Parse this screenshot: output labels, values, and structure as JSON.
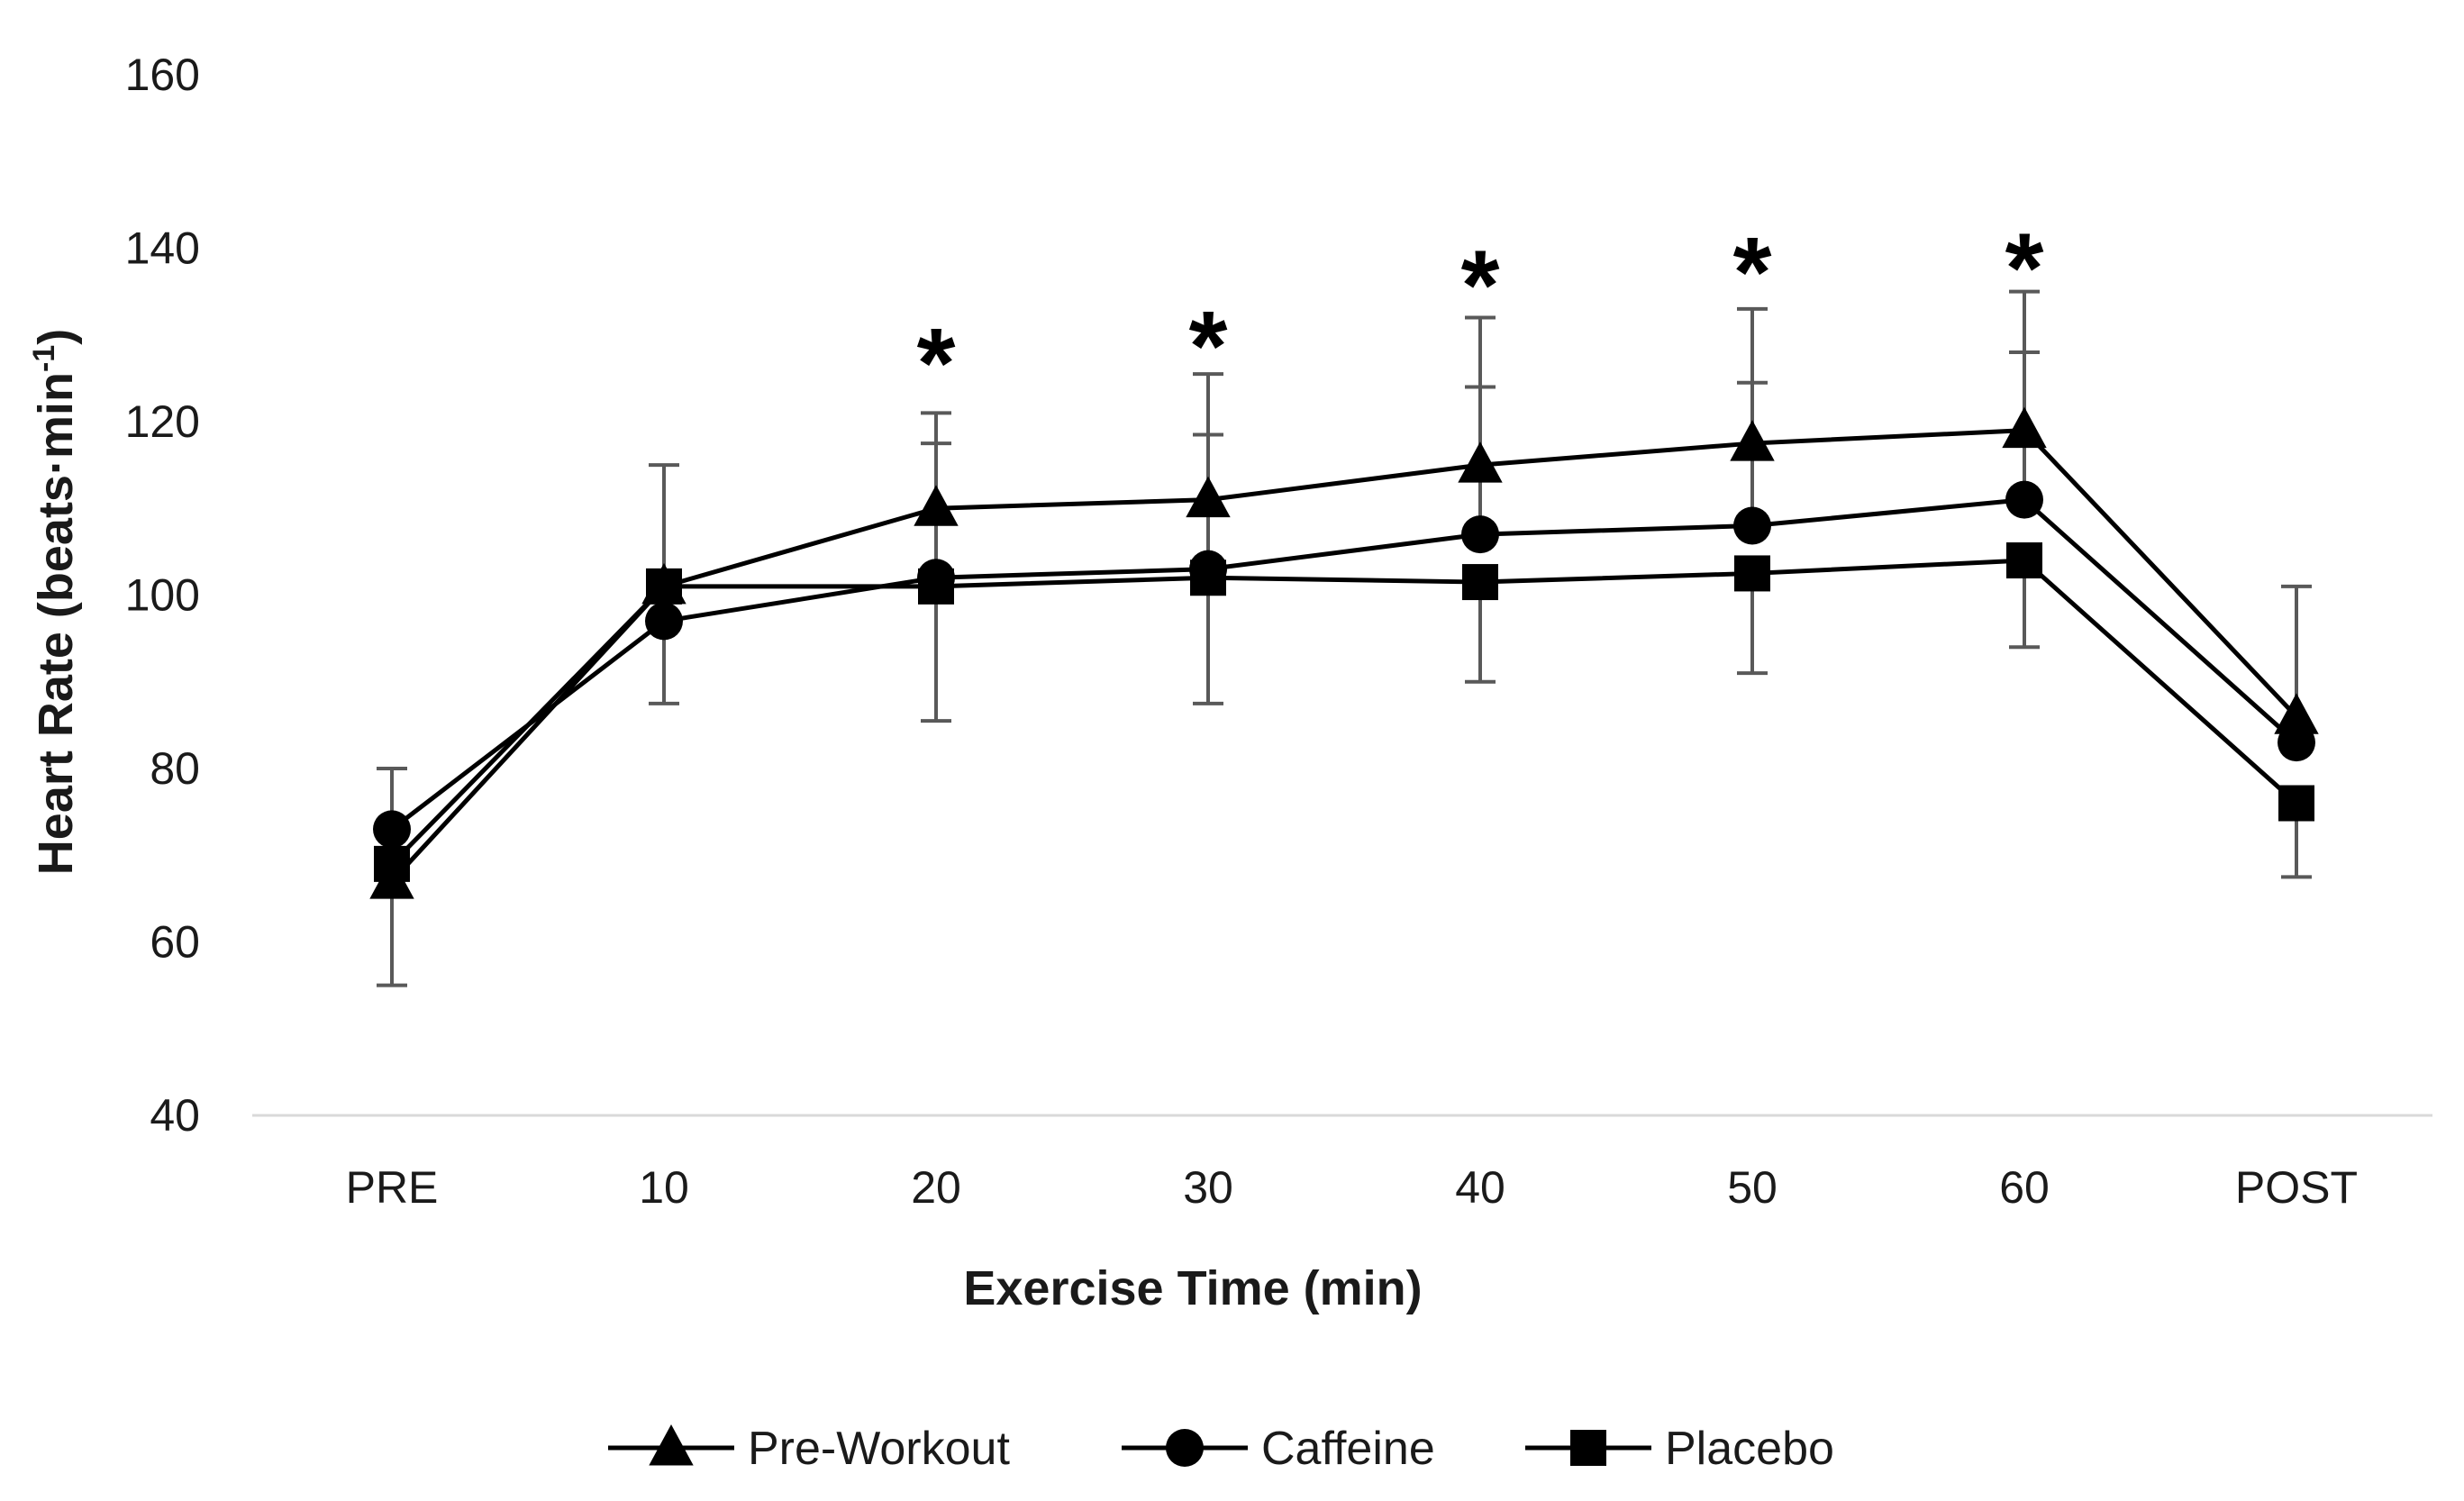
{
  "chart_data": {
    "type": "line",
    "title": "",
    "xlabel": "Exercise Time (min)",
    "ylabel_main": "Heart Rate (beats",
    "ylabel_dot": "·",
    "ylabel_unit": "min",
    "ylabel_sup": "-1",
    "ylabel_close": ")",
    "ylim": [
      40,
      160
    ],
    "yticks": [
      40,
      60,
      80,
      100,
      120,
      140,
      160
    ],
    "categories": [
      "PRE",
      "10",
      "20",
      "30",
      "40",
      "50",
      "60",
      "POST"
    ],
    "series": [
      {
        "name": "Pre-Workout",
        "marker": "triangle",
        "values": [
          67,
          101,
          110,
          111,
          115,
          117.5,
          119,
          86
        ],
        "error": [
          null,
          14,
          11,
          14.5,
          17,
          15.5,
          16,
          15
        ]
      },
      {
        "name": "Caffeine",
        "marker": "circle",
        "values": [
          73,
          97,
          102,
          103,
          107,
          108,
          111,
          83
        ],
        "error": [
          7,
          null,
          15.5,
          15.5,
          17,
          16.5,
          17,
          null
        ]
      },
      {
        "name": "Placebo",
        "marker": "square",
        "values": [
          69,
          101,
          101,
          102,
          101.5,
          102.5,
          104,
          76
        ],
        "error": [
          14,
          13.5,
          15.5,
          14.5,
          11.5,
          11.5,
          10,
          8.5
        ]
      }
    ],
    "significance": [
      {
        "category": "20",
        "label": "*",
        "value": 128.5
      },
      {
        "category": "30",
        "label": "*",
        "value": 130.5
      },
      {
        "category": "40",
        "label": "*",
        "value": 137.5
      },
      {
        "category": "50",
        "label": "*",
        "value": 139
      },
      {
        "category": "60",
        "label": "*",
        "value": 139.5
      }
    ],
    "legend_position": "bottom",
    "grid": false,
    "colors": {
      "line": "#000000",
      "error_bar": "#595959",
      "axis": "#d9d9d9",
      "text": "#1a1a1a"
    }
  }
}
